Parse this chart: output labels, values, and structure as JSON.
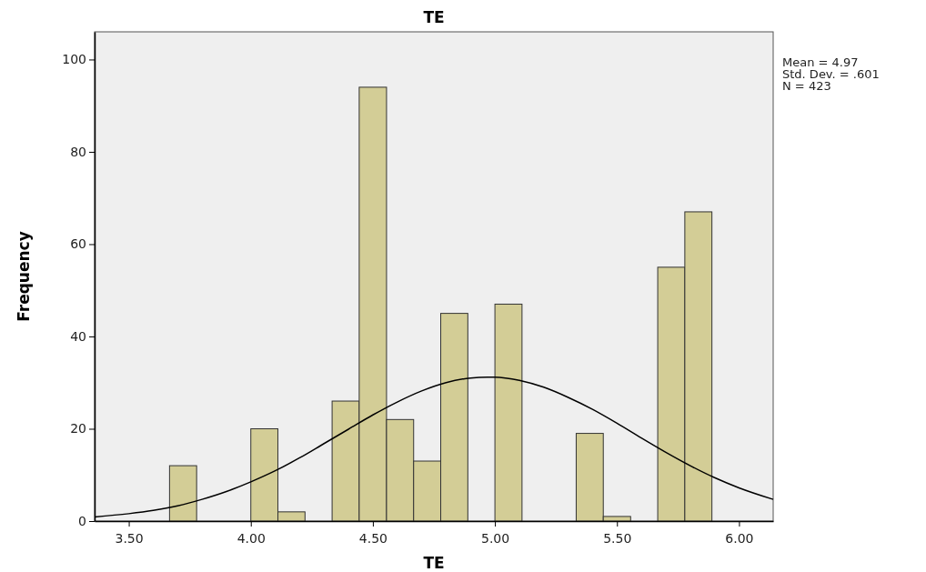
{
  "chart_data": {
    "type": "histogram",
    "title": "TE",
    "xlabel": "TE",
    "ylabel": "Frequency",
    "annotations": [
      "Mean = 4.97",
      "Std. Dev. = .601",
      "N = 423"
    ],
    "xlim": [
      3.36,
      6.14
    ],
    "ylim": [
      0,
      106
    ],
    "xticks": [
      {
        "value": 3.5,
        "label": "3.50"
      },
      {
        "value": 4,
        "label": "4.00"
      },
      {
        "value": 4.5,
        "label": "4.50"
      },
      {
        "value": 5,
        "label": "5.00"
      },
      {
        "value": 5.5,
        "label": "5.50"
      },
      {
        "value": 6,
        "label": "6.00"
      }
    ],
    "yticks": [
      0,
      20,
      40,
      60,
      80,
      100
    ],
    "series": [
      {
        "color": "#d3cd96",
        "bins": [
          3.667,
          3.778,
          3.889,
          4.0,
          4.111,
          4.222,
          4.333,
          4.444,
          4.556,
          4.667,
          4.778,
          4.889,
          5.0,
          5.111,
          5.222,
          5.333,
          5.444,
          5.556,
          5.667,
          5.778,
          5.889
        ],
        "values": [
          12,
          0,
          0,
          20,
          2,
          0,
          26,
          94,
          22,
          13,
          45,
          0,
          47,
          0,
          0,
          19,
          1,
          0,
          55,
          67
        ]
      },
      {
        "type": "line",
        "color": "#000000",
        "x": [
          3.36,
          3.5,
          3.6,
          3.7,
          3.8,
          3.9,
          4.0,
          4.1,
          4.2,
          4.3,
          4.4,
          4.5,
          4.6,
          4.7,
          4.8,
          4.9,
          4.97,
          5.0,
          5.1,
          5.2,
          5.3,
          5.4,
          5.5,
          5.6,
          5.7,
          5.8,
          5.9,
          6.0,
          6.14
        ],
        "values": [
          0.9,
          1.6,
          2.3,
          3.3,
          4.7,
          6.4,
          8.5,
          10.9,
          13.7,
          16.8,
          19.9,
          23.0,
          25.8,
          28.2,
          30.0,
          31.0,
          31.2,
          31.2,
          30.5,
          29.0,
          26.8,
          24.2,
          21.2,
          18.0,
          14.9,
          12.0,
          9.4,
          7.2,
          4.7
        ]
      }
    ]
  }
}
